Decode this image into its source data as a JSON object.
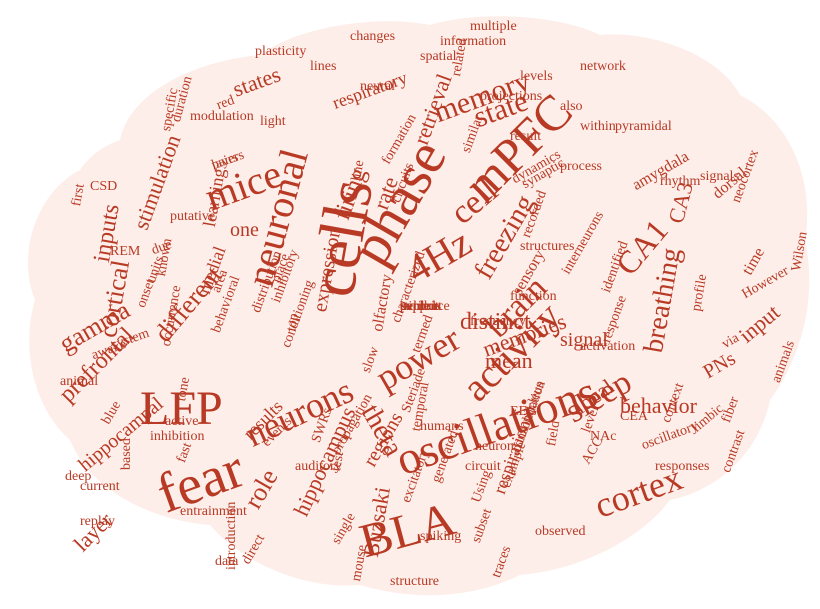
{
  "colors": {
    "word": "#b83a24",
    "background": "#ffffff",
    "brain_fill": "#fdeeea"
  },
  "words": [
    "cells",
    "phase",
    "mPFC",
    "4Hz",
    "fear",
    "oscillations",
    "BLA",
    "LFP",
    "neuronal",
    "mice",
    "activity",
    "sleep",
    "cortex",
    "neurons",
    "cell",
    "memory",
    "state",
    "power",
    "brain",
    "freezing",
    "CA1",
    "breathing",
    "theta",
    "gamma",
    "prefrontal",
    "hippocampal",
    "cortical",
    "different",
    "distinct",
    "local",
    "role",
    "hippocampus",
    "inputs",
    "behavior",
    "stimulation",
    "memories",
    "input",
    "mean",
    "firing",
    "layer",
    "states",
    "rate",
    "retrieval",
    "expression",
    "signal",
    "PNs",
    "Buzsaki",
    "frequency",
    "regions",
    "olfactory",
    "respiration",
    "results",
    "events",
    "respiratory",
    "sensory",
    "amygdala",
    "time",
    "dorsal",
    "distribution",
    "place",
    "medial",
    "one",
    "learning",
    "layers",
    "modulation",
    "CA3",
    "structures",
    "spatial",
    "information",
    "network",
    "neural",
    "lines",
    "plasticity",
    "specific",
    "duration",
    "system",
    "awake",
    "animal",
    "REM",
    "first",
    "CSD",
    "due",
    "behavioral",
    "area",
    "inhibitory",
    "top",
    "synaptic",
    "via",
    "However",
    "rhythm",
    "limbic",
    "oscillatory",
    "level",
    "field",
    "test",
    "Steriade",
    "consolidation",
    "example",
    "observed",
    "structure",
    "traces",
    "data",
    "introduction",
    "direct",
    "inhibition",
    "active",
    "entrainment",
    "based",
    "fast",
    "blue",
    "SWRs",
    "auditory",
    "single",
    "mouse",
    "humans",
    "neuron",
    "circuit",
    "interneurons",
    "identified",
    "function",
    "response",
    "profile",
    "context",
    "responses",
    "contrast",
    "animals",
    "neocortex",
    "signals",
    "pyramidal",
    "process",
    "dynamics",
    "formation",
    "circuits",
    "recorded",
    "line",
    "changes",
    "multiple",
    "light",
    "red",
    "pairs",
    "putative",
    "known",
    "units",
    "onset",
    "occurrence",
    "conditioning",
    "tone",
    "deep",
    "replay",
    "current",
    "nucleus",
    "ACC",
    "NAc",
    "CEA",
    "fiber",
    "Wilson",
    "related",
    "levels",
    "projections",
    "also",
    "result",
    "within",
    "similar",
    "subset",
    "temporal",
    "termed",
    "characterized",
    "slow",
    "excitatory",
    "spiking",
    "propagation",
    "generated",
    "EEG",
    "Using",
    "activation",
    "periods",
    "support",
    "triple",
    "exhibit",
    "evidence"
  ]
}
